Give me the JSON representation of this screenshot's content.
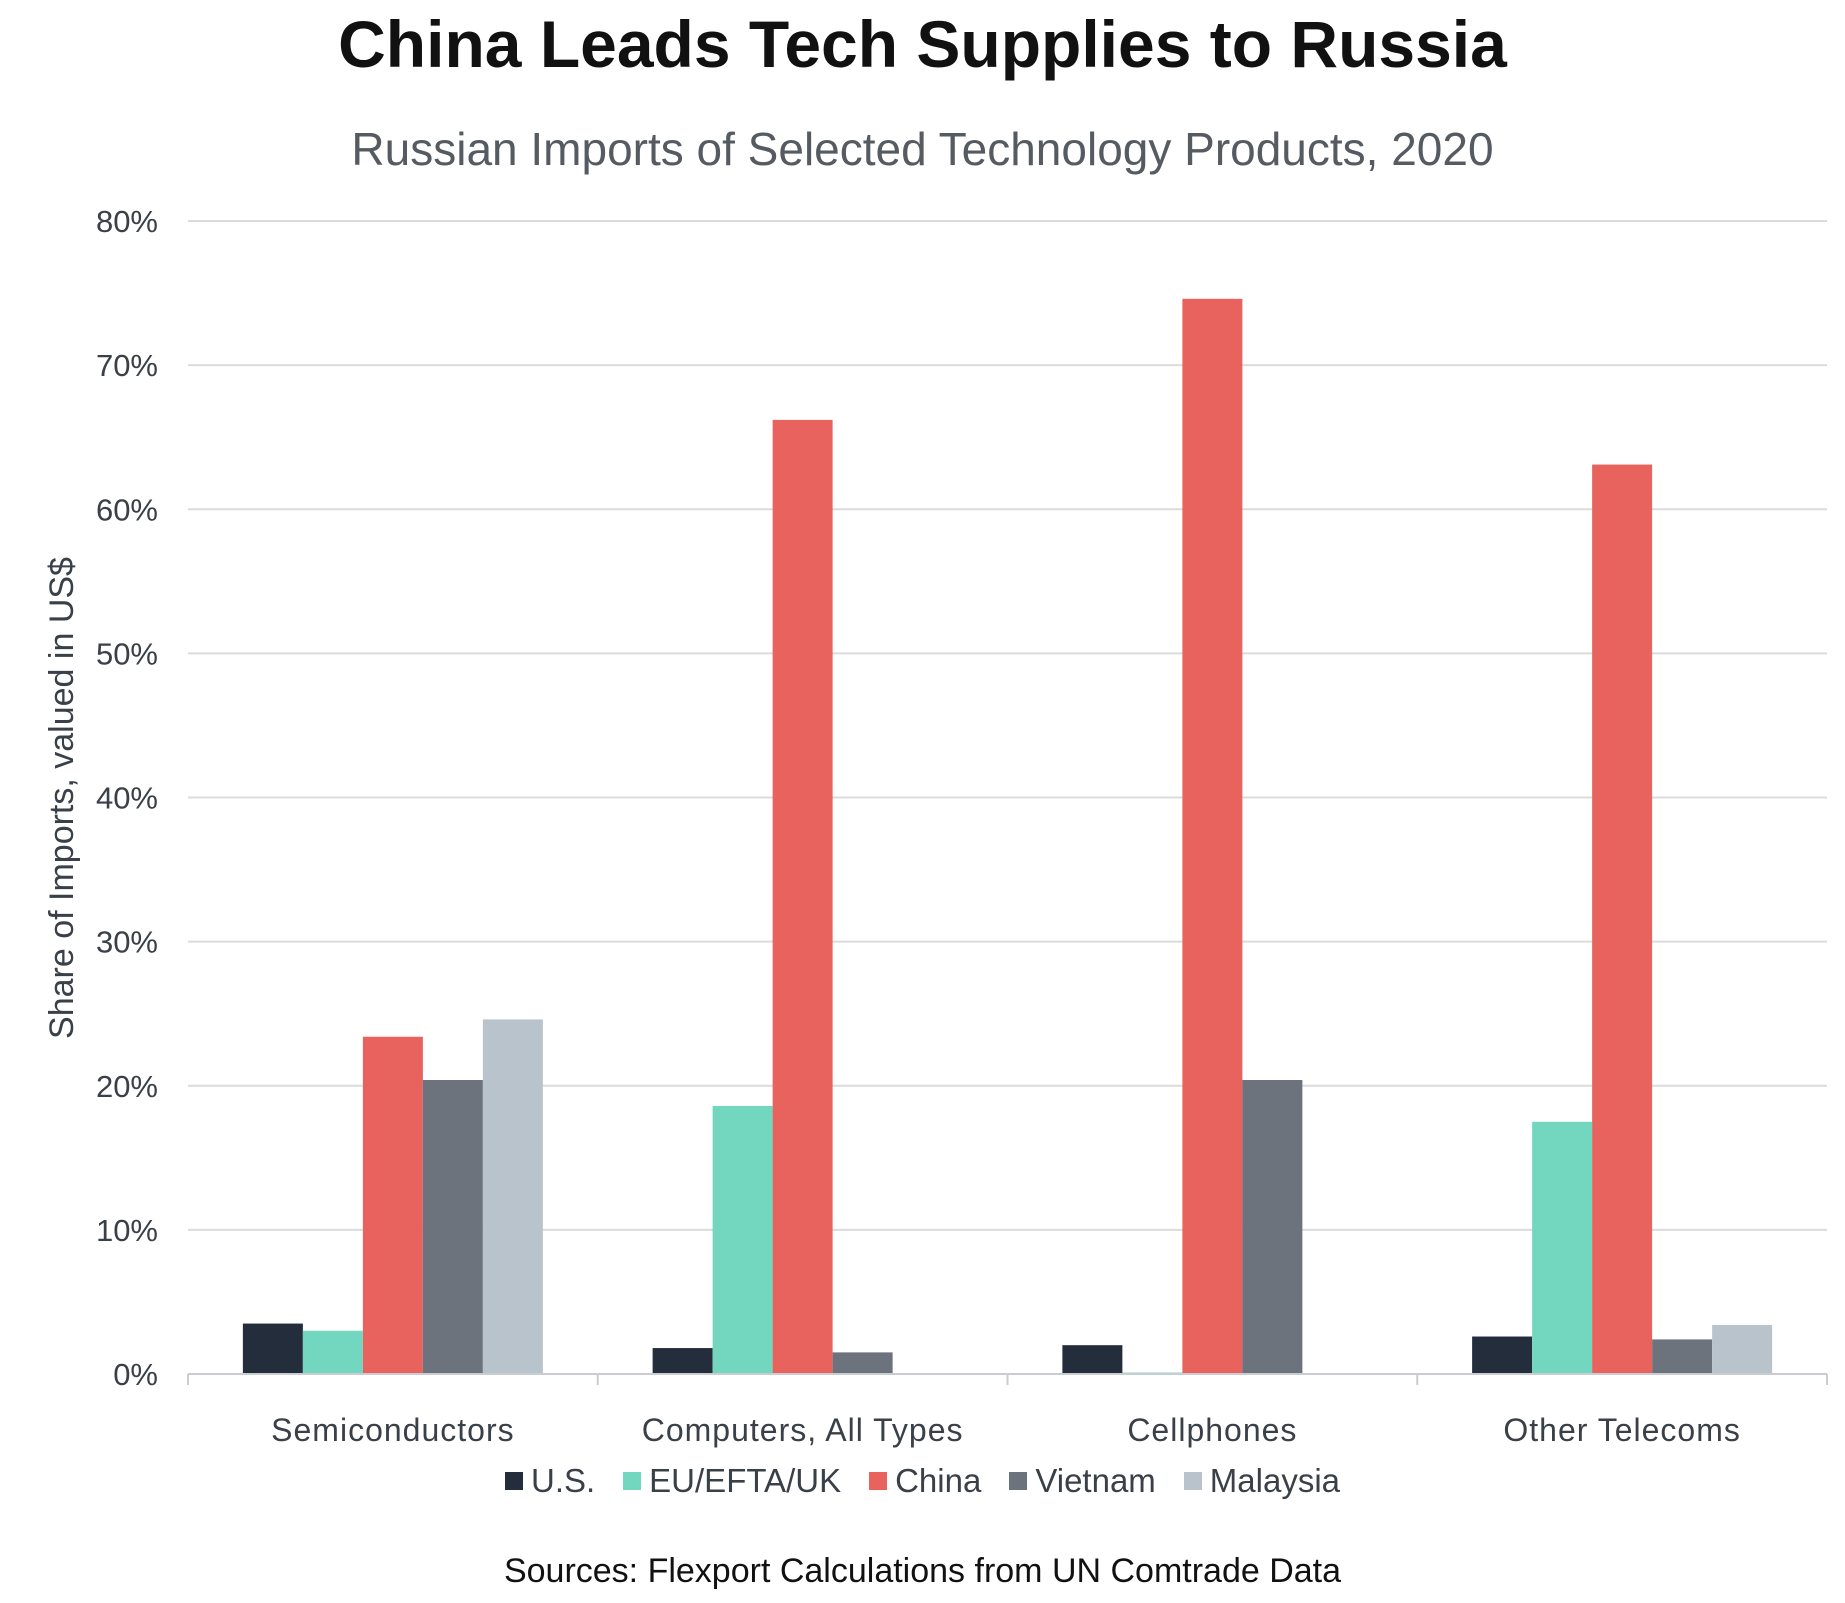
{
  "chart_data": {
    "type": "bar",
    "title": "China Leads Tech Supplies to Russia",
    "subtitle": "Russian Imports of Selected Technology Products, 2020",
    "ylabel": "Share of Imports, valued in US$",
    "xlabel": "",
    "ylim": [
      0,
      80
    ],
    "yticks": [
      "0%",
      "10%",
      "20%",
      "30%",
      "40%",
      "50%",
      "60%",
      "70%",
      "80%"
    ],
    "grid": true,
    "legend_position": "bottom",
    "categories": [
      "Semiconductors",
      "Computers, All Types",
      "Cellphones",
      "Other Telecoms"
    ],
    "series": [
      {
        "name": "U.S.",
        "color": "#232d3b",
        "values": [
          3.5,
          1.8,
          2.0,
          2.6
        ]
      },
      {
        "name": "EU/EFTA/UK",
        "color": "#73d7bf",
        "values": [
          3.0,
          18.6,
          0.1,
          17.5
        ]
      },
      {
        "name": "China",
        "color": "#e8635e",
        "values": [
          23.4,
          66.2,
          74.6,
          63.1
        ]
      },
      {
        "name": "Vietnam",
        "color": "#6c737d",
        "values": [
          20.4,
          1.5,
          20.4,
          2.4
        ]
      },
      {
        "name": "Malaysia",
        "color": "#b9c3cb",
        "values": [
          24.6,
          0,
          0,
          3.4
        ]
      }
    ],
    "source": "Sources: Flexport Calculations from UN Comtrade Data"
  }
}
